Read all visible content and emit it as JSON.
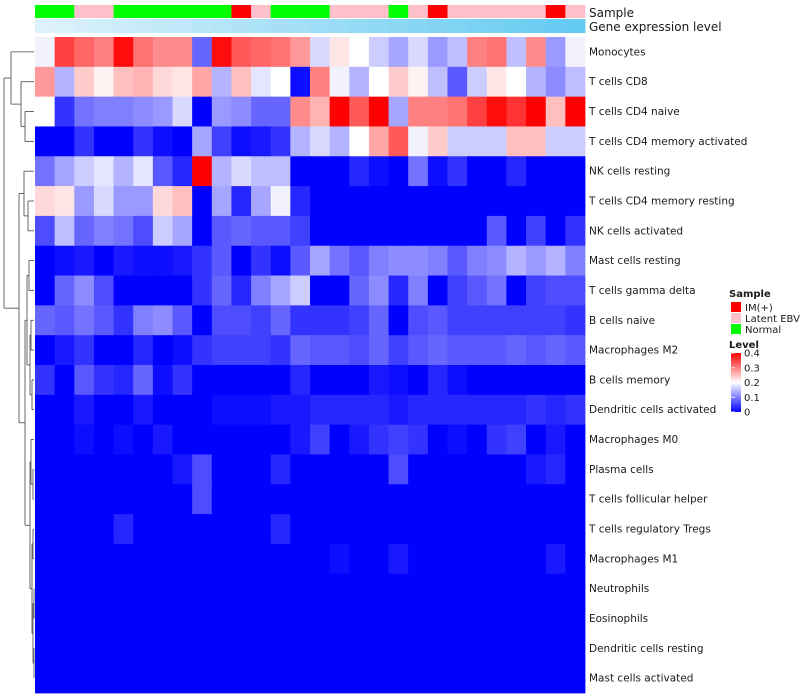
{
  "chart_data": {
    "type": "heatmap",
    "title": "",
    "annotation_labels": [
      "Sample",
      "Gene expression level"
    ],
    "rows": [
      "Monocytes",
      "T cells CD8",
      "T cells CD4 naive",
      "T cells CD4 memory activated",
      "NK cells resting",
      "T cells CD4 memory resting",
      "NK cells activated",
      "Mast cells resting",
      "T cells gamma delta",
      "B cells naive",
      "Macrophages M2",
      "B cells memory",
      "Dendritic cells activated",
      "Macrophages M0",
      "Plasma cells",
      "T cells follicular helper",
      "T cells regulatory  Tregs",
      "Macrophages M1",
      "Neutrophils",
      "Eosinophils",
      "Dendritic cells resting",
      "Mast cells activated"
    ],
    "sample_groups": [
      "Normal",
      "Normal",
      "Latent EBV",
      "Latent EBV",
      "Normal",
      "Normal",
      "Normal",
      "Normal",
      "Normal",
      "Normal",
      "IM(+)",
      "Latent EBV",
      "Normal",
      "Normal",
      "Normal",
      "Latent EBV",
      "Latent EBV",
      "Latent EBV",
      "Normal",
      "Latent EBV",
      "IM(+)",
      "Latent EBV",
      "Latent EBV",
      "Latent EBV",
      "Latent EBV",
      "Latent EBV",
      "IM(+)",
      "Latent EBV"
    ],
    "expression_level": [
      0.02,
      0.05,
      0.08,
      0.11,
      0.14,
      0.17,
      0.2,
      0.23,
      0.27,
      0.3,
      0.33,
      0.36,
      0.39,
      0.42,
      0.45,
      0.48,
      0.52,
      0.55,
      0.58,
      0.61,
      0.64,
      0.67,
      0.7,
      0.73,
      0.76,
      0.8,
      0.83,
      0.86
    ],
    "values": [
      [
        0.19,
        0.35,
        0.32,
        0.3,
        0.39,
        0.31,
        0.29,
        0.29,
        0.08,
        0.39,
        0.33,
        0.32,
        0.31,
        0.28,
        0.17,
        0.22,
        0.2,
        0.16,
        0.13,
        0.17,
        0.12,
        0.15,
        0.3,
        0.31,
        0.15,
        0.29,
        0.12,
        0.19
      ],
      [
        0.28,
        0.14,
        0.24,
        0.21,
        0.25,
        0.26,
        0.23,
        0.22,
        0.27,
        0.14,
        0.25,
        0.18,
        0.2,
        0.01,
        0.3,
        0.19,
        0.14,
        0.2,
        0.24,
        0.21,
        0.15,
        0.07,
        0.16,
        0.22,
        0.2,
        0.14,
        0.11,
        0.15
      ],
      [
        0.2,
        0.04,
        0.09,
        0.1,
        0.1,
        0.11,
        0.12,
        0.17,
        0.0,
        0.12,
        0.11,
        0.08,
        0.08,
        0.29,
        0.26,
        0.4,
        0.33,
        0.4,
        0.13,
        0.3,
        0.3,
        0.31,
        0.35,
        0.39,
        0.36,
        0.4,
        0.25,
        0.4
      ],
      [
        0.0,
        0.0,
        0.04,
        0.0,
        0.0,
        0.04,
        0.01,
        0.0,
        0.13,
        0.05,
        0.01,
        0.02,
        0.04,
        0.14,
        0.17,
        0.14,
        0.2,
        0.27,
        0.33,
        0.19,
        0.24,
        0.16,
        0.16,
        0.16,
        0.25,
        0.25,
        0.16,
        0.16
      ],
      [
        0.09,
        0.13,
        0.16,
        0.18,
        0.14,
        0.18,
        0.07,
        0.03,
        0.4,
        0.14,
        0.17,
        0.15,
        0.15,
        0.0,
        0.0,
        0.0,
        0.03,
        0.01,
        0.0,
        0.09,
        0.01,
        0.04,
        0.0,
        0.0,
        0.03,
        0.0,
        0.0,
        0.0
      ],
      [
        0.23,
        0.22,
        0.12,
        0.17,
        0.12,
        0.12,
        0.23,
        0.25,
        0.0,
        0.13,
        0.03,
        0.13,
        0.19,
        0.03,
        0.0,
        0.0,
        0.0,
        0.0,
        0.0,
        0.0,
        0.0,
        0.0,
        0.0,
        0.0,
        0.0,
        0.0,
        0.0,
        0.0
      ],
      [
        0.06,
        0.15,
        0.08,
        0.1,
        0.09,
        0.06,
        0.16,
        0.13,
        0.0,
        0.07,
        0.08,
        0.07,
        0.07,
        0.05,
        0.0,
        0.0,
        0.0,
        0.0,
        0.0,
        0.0,
        0.0,
        0.0,
        0.0,
        0.07,
        0.0,
        0.05,
        0.0,
        0.04
      ],
      [
        0.0,
        0.01,
        0.02,
        0.0,
        0.02,
        0.01,
        0.01,
        0.02,
        0.04,
        0.07,
        0.0,
        0.04,
        0.01,
        0.07,
        0.13,
        0.09,
        0.07,
        0.1,
        0.11,
        0.11,
        0.1,
        0.07,
        0.1,
        0.11,
        0.14,
        0.12,
        0.14,
        0.1
      ],
      [
        0.0,
        0.08,
        0.11,
        0.06,
        0.0,
        0.0,
        0.0,
        0.0,
        0.04,
        0.08,
        0.03,
        0.1,
        0.13,
        0.16,
        0.0,
        0.0,
        0.08,
        0.11,
        0.03,
        0.1,
        0.0,
        0.05,
        0.07,
        0.09,
        0.0,
        0.05,
        0.06,
        0.06
      ],
      [
        0.08,
        0.07,
        0.09,
        0.07,
        0.04,
        0.1,
        0.11,
        0.07,
        0.0,
        0.06,
        0.06,
        0.05,
        0.08,
        0.04,
        0.04,
        0.04,
        0.05,
        0.08,
        0.0,
        0.06,
        0.07,
        0.05,
        0.05,
        0.05,
        0.05,
        0.05,
        0.05,
        0.04
      ],
      [
        0.0,
        0.02,
        0.04,
        0.0,
        0.0,
        0.03,
        0.0,
        0.01,
        0.04,
        0.05,
        0.05,
        0.05,
        0.04,
        0.08,
        0.07,
        0.07,
        0.06,
        0.08,
        0.05,
        0.07,
        0.08,
        0.07,
        0.07,
        0.07,
        0.08,
        0.07,
        0.08,
        0.07
      ],
      [
        0.04,
        0.0,
        0.07,
        0.04,
        0.03,
        0.08,
        0.01,
        0.04,
        0.0,
        0.0,
        0.0,
        0.0,
        0.0,
        0.03,
        0.0,
        0.0,
        0.0,
        0.02,
        0.01,
        0.0,
        0.03,
        0.01,
        0.0,
        0.0,
        0.0,
        0.0,
        0.0,
        0.0
      ],
      [
        0.0,
        0.0,
        0.02,
        0.0,
        0.0,
        0.02,
        0.0,
        0.0,
        0.0,
        0.01,
        0.01,
        0.01,
        0.02,
        0.02,
        0.03,
        0.03,
        0.03,
        0.03,
        0.02,
        0.03,
        0.03,
        0.03,
        0.03,
        0.03,
        0.03,
        0.04,
        0.03,
        0.04
      ],
      [
        0.0,
        0.0,
        0.01,
        0.0,
        0.01,
        0.0,
        0.02,
        0.0,
        0.0,
        0.0,
        0.0,
        0.0,
        0.0,
        0.02,
        0.05,
        0.0,
        0.02,
        0.04,
        0.05,
        0.04,
        0.0,
        0.01,
        0.0,
        0.04,
        0.05,
        0.0,
        0.02,
        0.0
      ],
      [
        0.0,
        0.0,
        0.0,
        0.0,
        0.0,
        0.0,
        0.0,
        0.02,
        0.06,
        0.0,
        0.0,
        0.0,
        0.03,
        0.0,
        0.0,
        0.0,
        0.0,
        0.0,
        0.06,
        0.0,
        0.0,
        0.0,
        0.0,
        0.0,
        0.0,
        0.02,
        0.03,
        0.0
      ],
      [
        0.0,
        0.0,
        0.0,
        0.0,
        0.0,
        0.0,
        0.0,
        0.0,
        0.06,
        0.0,
        0.0,
        0.0,
        0.0,
        0.0,
        0.0,
        0.0,
        0.0,
        0.0,
        0.0,
        0.0,
        0.0,
        0.0,
        0.0,
        0.0,
        0.0,
        0.0,
        0.0,
        0.0
      ],
      [
        0.0,
        0.0,
        0.0,
        0.0,
        0.03,
        0.0,
        0.0,
        0.0,
        0.0,
        0.0,
        0.0,
        0.0,
        0.03,
        0.0,
        0.0,
        0.0,
        0.0,
        0.0,
        0.0,
        0.0,
        0.0,
        0.0,
        0.0,
        0.0,
        0.0,
        0.0,
        0.0,
        0.0
      ],
      [
        0.0,
        0.0,
        0.0,
        0.0,
        0.0,
        0.0,
        0.0,
        0.0,
        0.0,
        0.0,
        0.0,
        0.0,
        0.0,
        0.0,
        0.0,
        0.01,
        0.0,
        0.0,
        0.02,
        0.0,
        0.0,
        0.0,
        0.0,
        0.0,
        0.0,
        0.0,
        0.02,
        0.0
      ],
      [
        0.0,
        0.0,
        0.0,
        0.0,
        0.0,
        0.0,
        0.0,
        0.0,
        0.0,
        0.0,
        0.0,
        0.0,
        0.0,
        0.0,
        0.0,
        0.0,
        0.0,
        0.0,
        0.0,
        0.0,
        0.0,
        0.0,
        0.0,
        0.0,
        0.0,
        0.0,
        0.0,
        0.0
      ],
      [
        0.0,
        0.0,
        0.0,
        0.0,
        0.0,
        0.0,
        0.0,
        0.0,
        0.0,
        0.0,
        0.0,
        0.0,
        0.0,
        0.0,
        0.0,
        0.0,
        0.0,
        0.0,
        0.0,
        0.0,
        0.0,
        0.0,
        0.0,
        0.0,
        0.0,
        0.0,
        0.0,
        0.0
      ],
      [
        0.0,
        0.0,
        0.0,
        0.0,
        0.0,
        0.0,
        0.0,
        0.0,
        0.0,
        0.0,
        0.0,
        0.0,
        0.0,
        0.0,
        0.0,
        0.0,
        0.0,
        0.0,
        0.0,
        0.0,
        0.0,
        0.0,
        0.0,
        0.0,
        0.0,
        0.0,
        0.0,
        0.0
      ],
      [
        0.0,
        0.0,
        0.0,
        0.0,
        0.0,
        0.0,
        0.0,
        0.0,
        0.0,
        0.0,
        0.0,
        0.0,
        0.0,
        0.0,
        0.0,
        0.0,
        0.0,
        0.0,
        0.0,
        0.0,
        0.0,
        0.0,
        0.0,
        0.0,
        0.0,
        0.0,
        0.0,
        0.0
      ]
    ],
    "colorbar": {
      "label": "Level",
      "range": [
        0,
        0.4
      ],
      "ticks": [
        0.4,
        0.3,
        0.2,
        0.1,
        0
      ],
      "tick_labels": [
        "0.4",
        "0.3",
        "0.2",
        "0.1",
        "0"
      ],
      "colors": {
        "low": "#0000ff",
        "mid": "#ffffff",
        "high": "#ff0000"
      }
    },
    "legend": {
      "title": "Sample",
      "placement": "right",
      "entries": [
        {
          "label": "IM(+)",
          "color": "#ff0000"
        },
        {
          "label": "Latent EBV",
          "color": "#ffc0cb"
        },
        {
          "label": "Normal",
          "color": "#00ff00"
        }
      ]
    },
    "expression_colors": {
      "low": "#e0f3fb",
      "high": "#4fc3ef"
    },
    "dendrogram": "rows clustered (hierarchical), left side"
  }
}
